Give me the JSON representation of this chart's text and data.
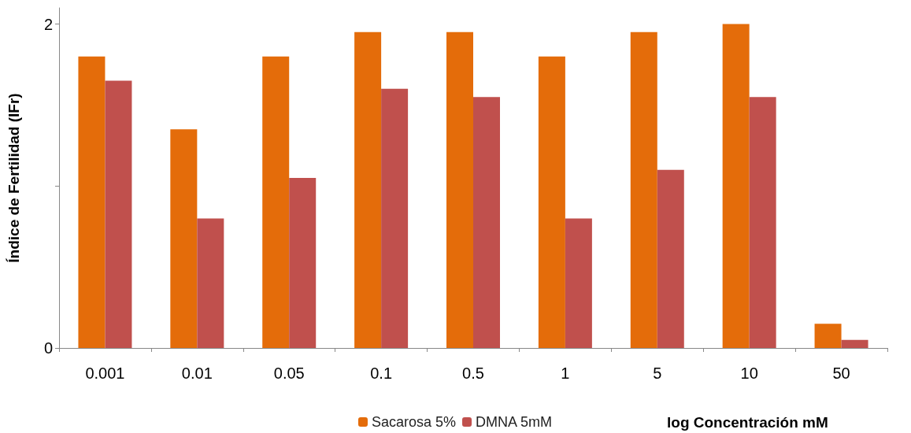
{
  "chart_data": {
    "type": "bar",
    "xlabel": "log Concentración mM",
    "ylabel": "Índice de Fertilidad (IFr)",
    "categories": [
      "0.001",
      "0.01",
      "0.05",
      "0.1",
      "0.5",
      "1",
      "5",
      "10",
      "50"
    ],
    "series": [
      {
        "name": "Sacarosa 5%",
        "color": "#e46c0a",
        "values": [
          1.8,
          1.35,
          1.8,
          1.95,
          1.95,
          1.8,
          1.95,
          2.0,
          0.15
        ]
      },
      {
        "name": "DMNA 5mM",
        "color": "#c0504d",
        "values": [
          1.65,
          0.8,
          1.05,
          1.6,
          1.55,
          0.8,
          1.1,
          1.55,
          0.05
        ]
      }
    ],
    "ylim": [
      0,
      2.1
    ],
    "yticks": [
      0,
      {
        "value": 1,
        "label": null
      },
      2
    ],
    "grid": false,
    "legend": "bottom"
  }
}
